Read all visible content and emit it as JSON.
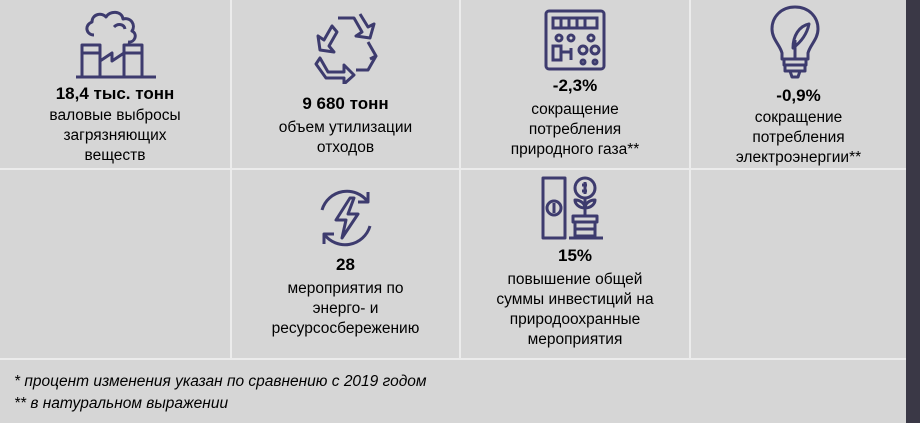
{
  "colors": {
    "background": "#d6d6d6",
    "divider": "#ececec",
    "icon": "#3d3b6e",
    "edge": "#3a3846"
  },
  "stats": [
    {
      "icon": "factory-icon",
      "value": "18,4 тыс. тонн",
      "desc": [
        "валовые выбросы",
        "загрязняющих",
        "веществ"
      ]
    },
    {
      "icon": "recycle-icon",
      "value": "9 680 тонн",
      "desc": [
        "объем утилизации",
        "отходов"
      ]
    },
    {
      "icon": "gas-meter-icon",
      "value": "-2,3%",
      "desc": [
        "сокращение",
        "потребления",
        "природного газа**"
      ]
    },
    {
      "icon": "lightbulb-leaf-icon",
      "value": "-0,9%",
      "desc": [
        "сокращение",
        "потребления",
        "электроэнергии**"
      ]
    },
    {
      "icon": "energy-cycle-icon",
      "value": "28",
      "desc": [
        "мероприятия по",
        "энерго- и",
        "ресурсосбережению"
      ]
    },
    {
      "icon": "money-growth-icon",
      "value": "15%",
      "desc": [
        "повышение общей",
        "суммы инвестиций на",
        "природоохранные",
        "мероприятия"
      ]
    }
  ],
  "footnotes": [
    "* процент изменения указан по сравнению с 2019 годом",
    "** в натуральном выражении"
  ]
}
